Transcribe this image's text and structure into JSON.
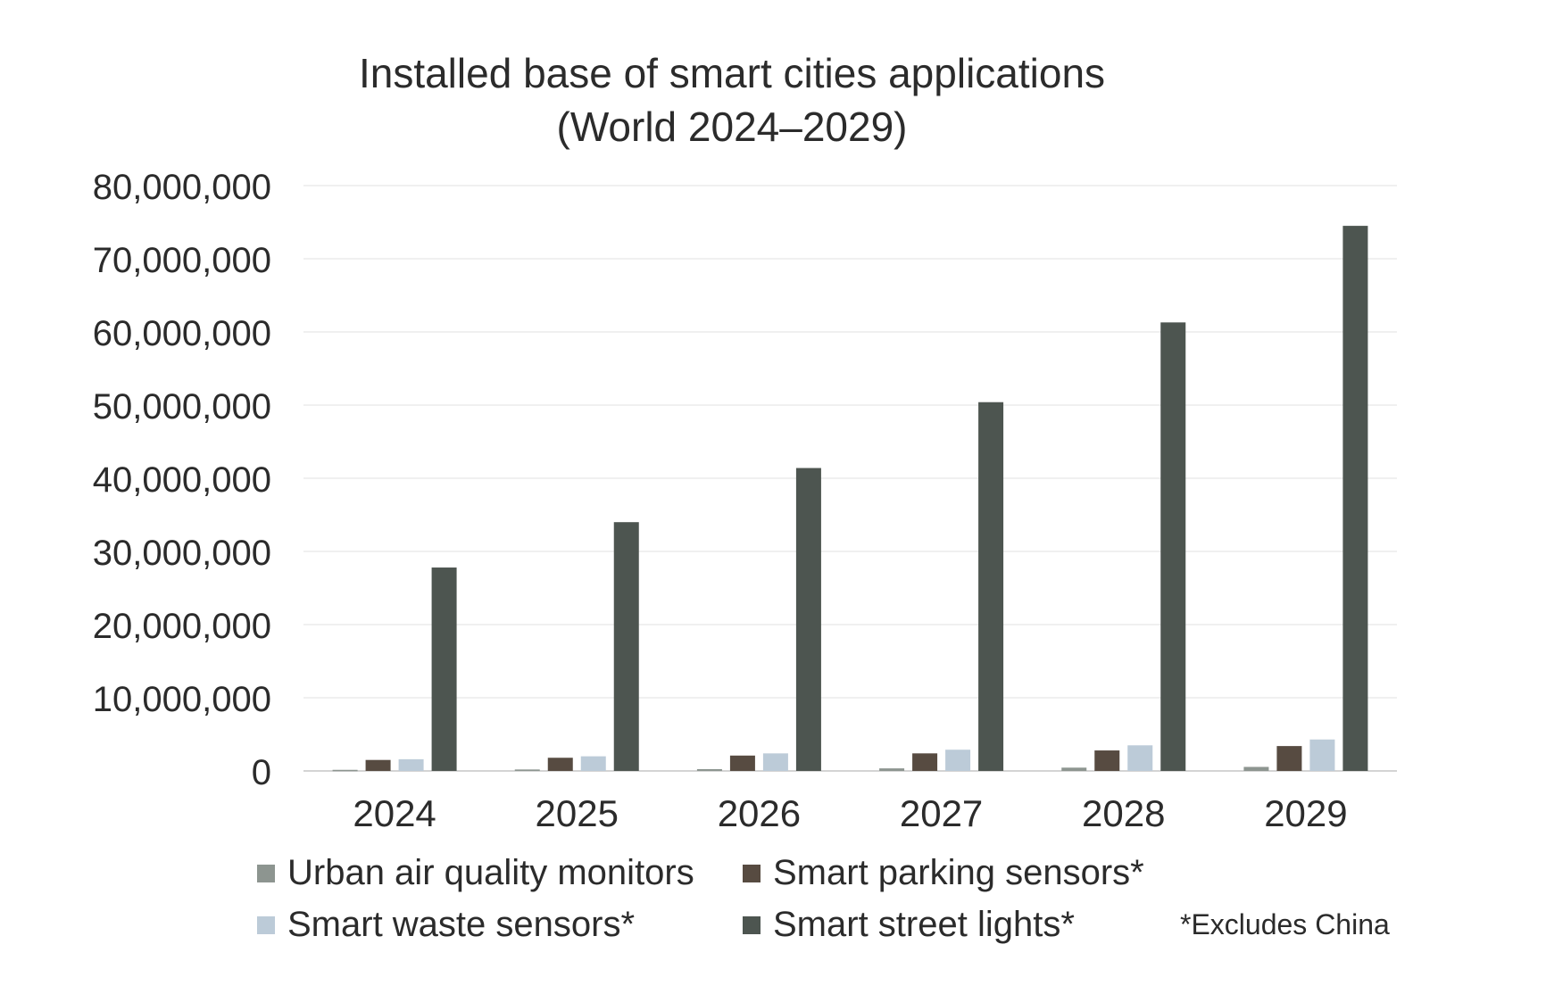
{
  "chart_data": {
    "type": "bar",
    "title": "Installed base of smart cities applications",
    "subtitle": "(World 2024–2029)",
    "categories": [
      "2024",
      "2025",
      "2026",
      "2027",
      "2028",
      "2029"
    ],
    "series": [
      {
        "name": "Urban air quality monitors",
        "color": "#8d9590",
        "values": [
          150000,
          200000,
          250000,
          350000,
          450000,
          550000
        ]
      },
      {
        "name": "Smart parking sensors*",
        "color": "#574b41",
        "values": [
          1500000,
          1800000,
          2100000,
          2400000,
          2800000,
          3400000
        ]
      },
      {
        "name": "Smart waste sensors*",
        "color": "#bccbd8",
        "values": [
          1600000,
          2000000,
          2400000,
          2900000,
          3500000,
          4300000
        ]
      },
      {
        "name": "Smart street lights*",
        "color": "#4d5550",
        "values": [
          27800000,
          34000000,
          41400000,
          50400000,
          61300000,
          74500000
        ]
      }
    ],
    "ylim": [
      0,
      80000000
    ],
    "yticks": [
      0,
      10000000,
      20000000,
      30000000,
      40000000,
      50000000,
      60000000,
      70000000,
      80000000
    ],
    "ytick_labels": [
      "0",
      "10,000,000",
      "20,000,000",
      "30,000,000",
      "40,000,000",
      "50,000,000",
      "60,000,000",
      "70,000,000",
      "80,000,000"
    ],
    "xlabel": "",
    "ylabel": "",
    "grid": true,
    "legend_position": "bottom",
    "footnote": "*Excludes China"
  }
}
